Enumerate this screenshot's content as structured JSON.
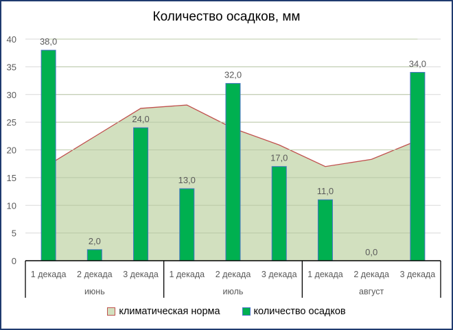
{
  "title": "Количество осадков, мм",
  "colors": {
    "bar_fill": "#00b050",
    "bar_border": "#4472c4",
    "area_fill": "#d2e0bf",
    "area_line": "#c0504d",
    "grid": "#d9d9d9",
    "frame": "#1f3a6e"
  },
  "legend": {
    "items": [
      {
        "label": "климатическая норма"
      },
      {
        "label": "количество осадков"
      }
    ]
  },
  "chart_data": {
    "type": "bar",
    "title": "Количество осадков, мм",
    "xlabel": "",
    "ylabel": "",
    "ylim": [
      0,
      40
    ],
    "yticks": [
      0,
      5,
      10,
      15,
      20,
      25,
      30,
      35,
      40
    ],
    "grid": true,
    "legend_position": "bottom",
    "categories": [
      "1 декада",
      "2 декада",
      "3 декада",
      "1 декада",
      "2 декада",
      "3 декада",
      "1 декада",
      "2 декада",
      "3 декада"
    ],
    "groups": [
      {
        "label": "июнь",
        "span": 3
      },
      {
        "label": "июль",
        "span": 3
      },
      {
        "label": "август",
        "span": 3
      }
    ],
    "series": [
      {
        "name": "климатическая норма",
        "type": "area",
        "values": [
          17.3,
          22.4,
          27.5,
          28.1,
          23.9,
          20.9,
          17.0,
          18.3,
          21.7
        ]
      },
      {
        "name": "количество осадков",
        "type": "bar",
        "values": [
          38.0,
          2.0,
          24.0,
          13.0,
          32.0,
          17.0,
          11.0,
          0.0,
          34.0
        ],
        "data_labels": [
          "38,0",
          "2,0",
          "24,0",
          "13,0",
          "32,0",
          "17,0",
          "11,0",
          "0,0",
          "34,0"
        ]
      }
    ]
  }
}
